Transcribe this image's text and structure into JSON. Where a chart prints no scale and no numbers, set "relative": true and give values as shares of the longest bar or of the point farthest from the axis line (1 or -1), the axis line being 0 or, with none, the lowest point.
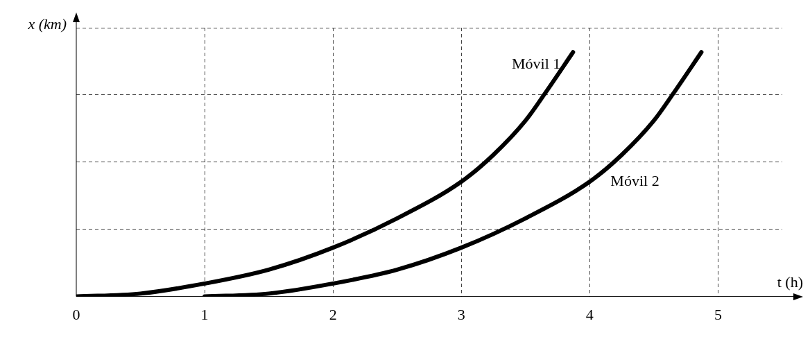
{
  "chart_data": {
    "type": "line",
    "relative": true,
    "xlabel": "t (h)",
    "ylabel": "x (km)",
    "xlim": [
      0,
      5.5
    ],
    "xticks": [
      0,
      1,
      2,
      3,
      4,
      5
    ],
    "grid": true,
    "legend": false,
    "marker": "none",
    "line_style": "solid",
    "series": [
      {
        "name": "Móvil 1",
        "color": "#000000",
        "x": [
          0,
          0.5,
          1,
          1.5,
          2,
          2.5,
          3,
          3.25,
          3.5,
          3.65,
          3.87
        ],
        "values": [
          0,
          0.012,
          0.053,
          0.11,
          0.2,
          0.32,
          0.47,
          0.58,
          0.72,
          0.83,
          1
        ]
      },
      {
        "name": "Móvil 2",
        "color": "#000000",
        "x": [
          1,
          1.5,
          2,
          2.5,
          3,
          3.5,
          4,
          4.25,
          4.5,
          4.65,
          4.87
        ],
        "values": [
          0,
          0.012,
          0.053,
          0.11,
          0.2,
          0.32,
          0.47,
          0.58,
          0.72,
          0.83,
          1
        ]
      }
    ]
  }
}
